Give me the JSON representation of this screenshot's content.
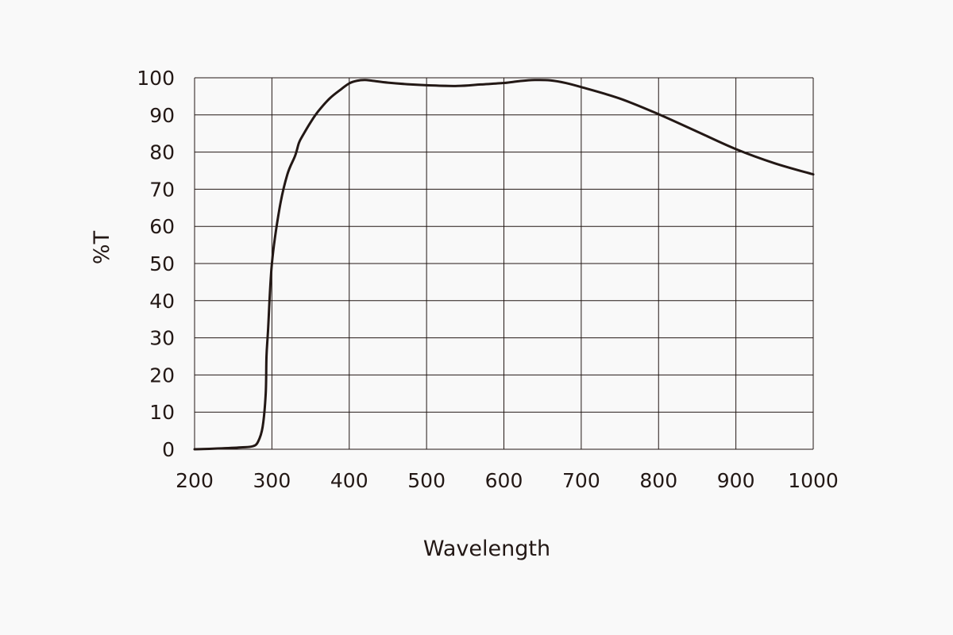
{
  "chart_data": {
    "type": "line",
    "title": "",
    "xlabel": "Wavelength",
    "ylabel": "%T",
    "xlim": [
      200,
      1000
    ],
    "ylim": [
      0,
      100
    ],
    "grid": true,
    "legend": "none",
    "x_ticks": [
      200,
      300,
      400,
      500,
      600,
      700,
      800,
      900,
      1000
    ],
    "y_ticks": [
      0,
      10,
      20,
      30,
      40,
      50,
      60,
      70,
      80,
      90,
      100
    ],
    "x_tick_labels": [
      "200",
      "300",
      "400",
      "500",
      "600",
      "700",
      "800",
      "900",
      "1000"
    ],
    "y_tick_labels": [
      "0",
      "10",
      "20",
      "30",
      "40",
      "50",
      "60",
      "70",
      "80",
      "90",
      "100"
    ],
    "series": [
      {
        "x": [
          200,
          230,
          260,
          275,
          282,
          288,
          292,
          293,
          295,
          300,
          310,
          320,
          330,
          335,
          340,
          350,
          360,
          375,
          390,
          400,
          410,
          420,
          430,
          450,
          480,
          500,
          540,
          570,
          600,
          620,
          640,
          660,
          680,
          700,
          750,
          800,
          850,
          900,
          950,
          1000
        ],
        "y": [
          0,
          0.2,
          0.5,
          0.8,
          2,
          6,
          15,
          25,
          32,
          50,
          65,
          74,
          79,
          82.5,
          84.5,
          88,
          91,
          94.5,
          97,
          98.5,
          99.2,
          99.4,
          99.2,
          98.7,
          98.2,
          98,
          97.8,
          98.2,
          98.6,
          99.1,
          99.4,
          99.3,
          98.6,
          97.5,
          94.4,
          90.2,
          85.5,
          80.8,
          77,
          74
        ]
      }
    ],
    "colors": {
      "line": "#231815",
      "grid": "#231815",
      "background": "#f9f9f9"
    }
  }
}
